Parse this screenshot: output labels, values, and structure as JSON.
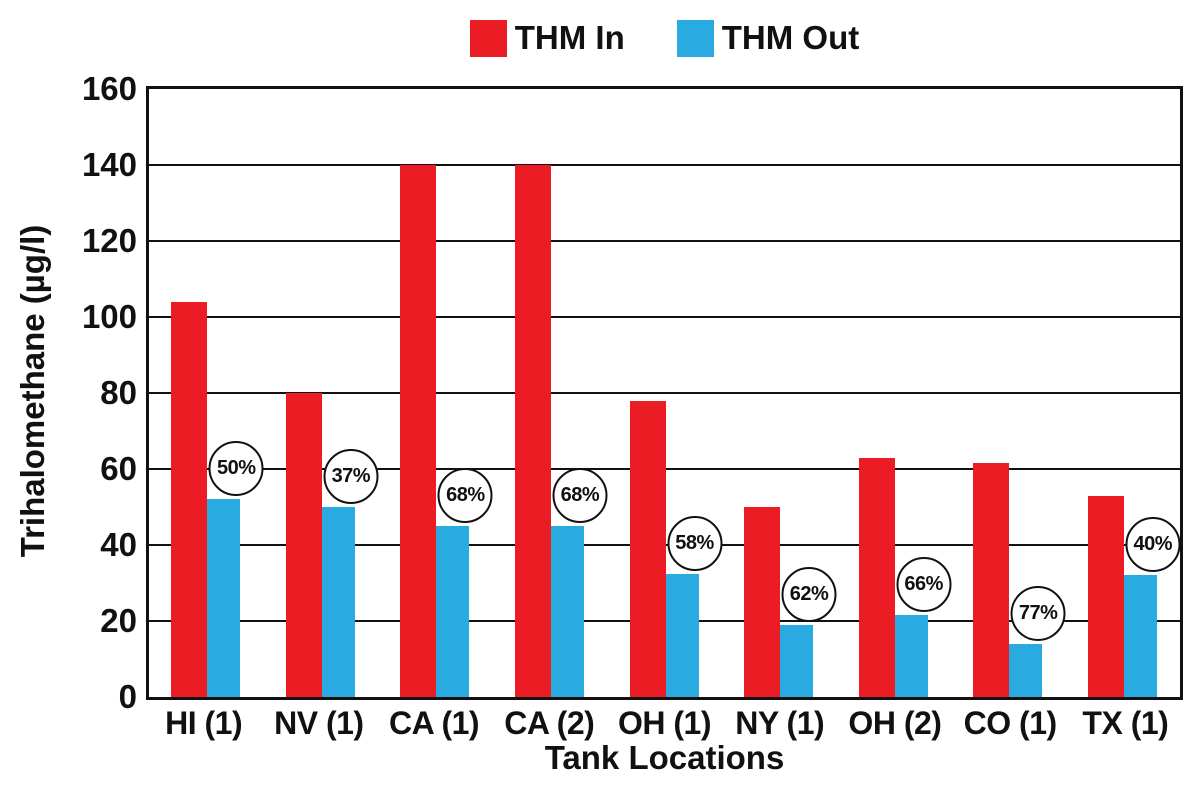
{
  "chart_data": {
    "type": "bar",
    "title": "",
    "xlabel": "Tank Locations",
    "ylabel": "Trihalomethane (µg/l)",
    "ylim": [
      0,
      160
    ],
    "yticks": [
      0,
      20,
      40,
      60,
      80,
      100,
      120,
      140,
      160
    ],
    "grid": "horizontal",
    "legend_position": "top-center",
    "background_color": "#ffffff",
    "axis_color": "#111111",
    "categories": [
      "HI (1)",
      "NV (1)",
      "CA (1)",
      "CA (2)",
      "OH (1)",
      "NY (1)",
      "OH (2)",
      "CO (1)",
      "TX (1)"
    ],
    "series": [
      {
        "name": "THM In",
        "color": "#EC1C24",
        "values": [
          104,
          80,
          140,
          140,
          78,
          50,
          63,
          61.5,
          53
        ]
      },
      {
        "name": "THM Out",
        "color": "#29ABE2",
        "values": [
          52,
          50,
          45,
          45,
          32.5,
          19,
          21.5,
          14,
          32
        ]
      }
    ],
    "reduction_labels": [
      "50%",
      "37%",
      "68%",
      "68%",
      "58%",
      "62%",
      "66%",
      "77%",
      "40%"
    ]
  }
}
